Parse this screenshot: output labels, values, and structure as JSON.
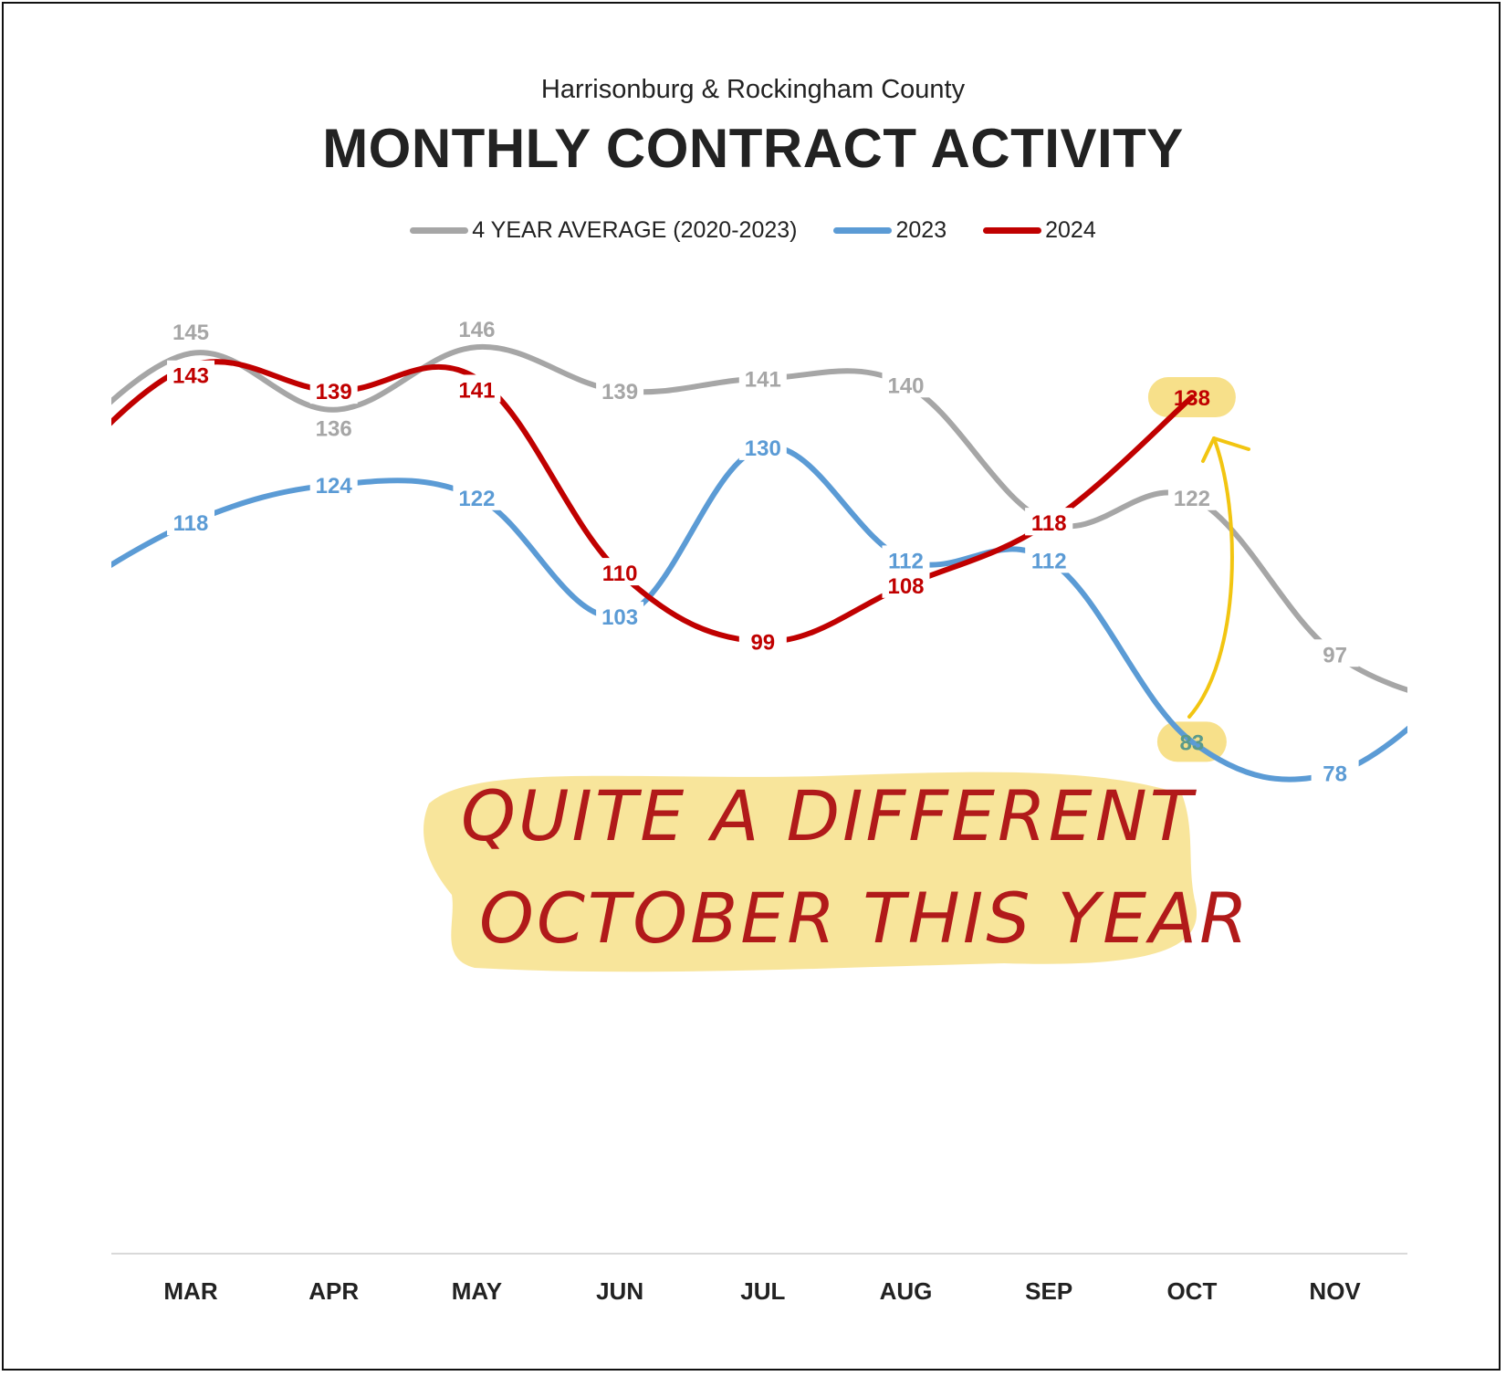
{
  "chart_data": {
    "type": "line",
    "subtitle": "Harrisonburg & Rockingham County",
    "title": "MONTHLY CONTRACT ACTIVITY",
    "categories": [
      "MAR",
      "APR",
      "MAY",
      "JUN",
      "JUL",
      "AUG",
      "SEP",
      "OCT",
      "NOV"
    ],
    "ylim": [
      60,
      160
    ],
    "grid": false,
    "legend_position": "top",
    "series": [
      {
        "name": "4 YEAR AVERAGE (2020-2023)",
        "color": "#a6a6a6",
        "values": [
          145,
          136,
          146,
          139,
          141,
          140,
          118,
          122,
          97
        ]
      },
      {
        "name": "2023",
        "color": "#5b9bd5",
        "values": [
          118,
          124,
          122,
          103,
          130,
          112,
          112,
          83,
          78
        ]
      },
      {
        "name": "2024",
        "color": "#c00000",
        "values": [
          143,
          139,
          141,
          110,
          99,
          108,
          118,
          138,
          null
        ]
      }
    ],
    "annotation": {
      "line1": "QUITE A DIFFERENT",
      "line2": "OCTOBER THIS YEAR",
      "highlight_color": "#f7e08a",
      "arrow_color": "#f2c511"
    }
  }
}
